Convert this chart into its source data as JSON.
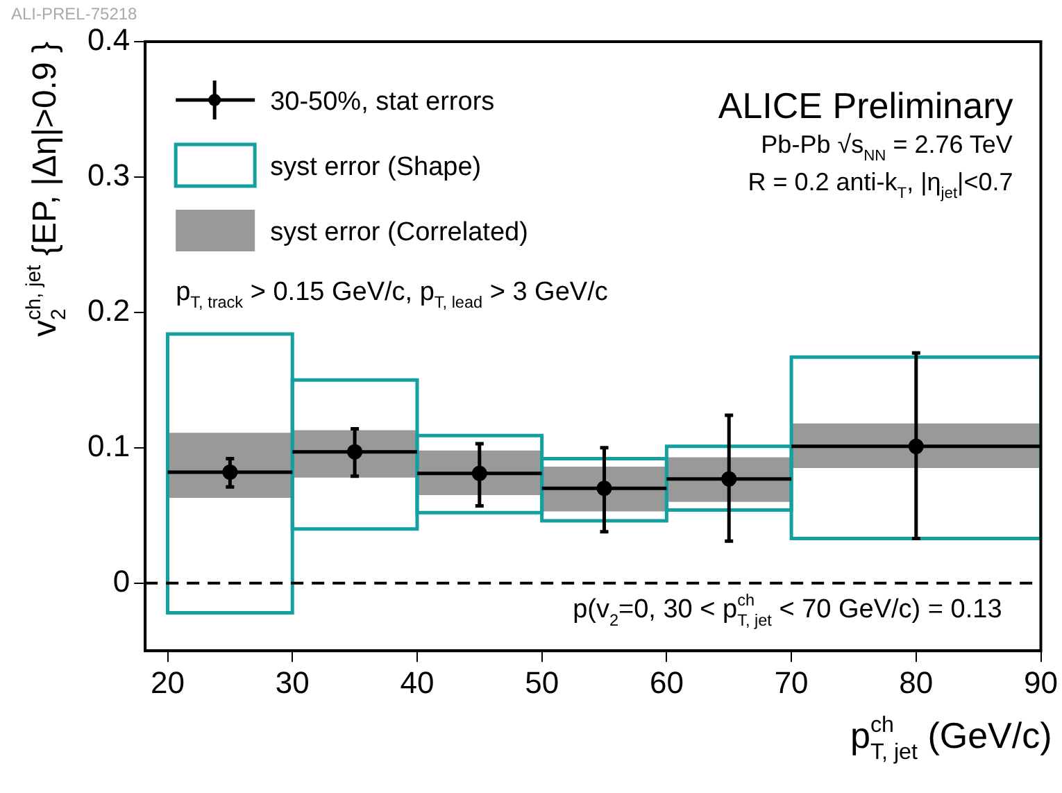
{
  "chart_data": {
    "type": "scatter",
    "xlabel": "p$^{ch}$$_{T, jet}$ (GeV/c)",
    "ylabel": "v$^{ch, jet}$$_{2}$ {EP, |Δη|>0.9 }",
    "xlim": [
      18.2,
      90
    ],
    "xticks": [
      20,
      30,
      40,
      50,
      60,
      70,
      80,
      90
    ],
    "ylim": [
      -0.05,
      0.4
    ],
    "yticks": [
      0,
      0.1,
      0.2,
      0.3,
      0.4
    ],
    "grid": false,
    "legend": "top left",
    "series": [
      {
        "name": "30-50%, stat errors",
        "marker": "circle",
        "color": "#000000",
        "x": [
          25,
          35,
          45,
          55,
          65,
          80
        ],
        "values": [
          0.082,
          0.097,
          0.081,
          0.07,
          0.077,
          0.101
        ],
        "errors": [
          [
            0.071,
            0.092
          ],
          [
            0.079,
            0.114
          ],
          [
            0.057,
            0.103
          ],
          [
            0.038,
            0.1
          ],
          [
            0.031,
            0.124
          ],
          [
            0.033,
            0.17
          ]
        ],
        "xerrors": [
          5,
          5,
          5,
          5,
          5,
          10
        ]
      },
      {
        "name": "syst error (Shape)",
        "type": "bar",
        "line_style": "solid",
        "color": "#14a0a0",
        "x": [
          25,
          35,
          45,
          55,
          65,
          80
        ],
        "base": [
          -0.022,
          0.04,
          0.052,
          0.046,
          0.054,
          0.033
        ],
        "values": [
          0.206,
          0.11,
          0.057,
          0.046,
          0.047,
          0.134
        ]
      },
      {
        "name": "syst error (Correlated)",
        "type": "bar",
        "color": "#999999",
        "x": [
          25,
          35,
          45,
          55,
          65,
          80
        ],
        "base": [
          0.063,
          0.078,
          0.065,
          0.053,
          0.06,
          0.085
        ],
        "values": [
          0.048,
          0.035,
          0.033,
          0.033,
          0.033,
          0.033
        ]
      }
    ],
    "ref_lines": [
      {
        "axis": "y",
        "value": 0,
        "line_style": "dashed",
        "color": "#000000"
      }
    ],
    "annotations": [
      "ALI-PREL-75218",
      "ALICE Preliminary",
      "Pb-Pb √s$_{NN}$ = 2.76 TeV",
      "R = 0.2 anti-k$_{T}$, |η$_{jet}$|<0.7",
      "p$_{T, track}$ > 0.15 GeV/c, p$_{T, lead}$ > 3 GeV/c",
      "p(v$_{2}$=0, 30 < p$^{ch}$$_{T, jet}$ < 70 GeV/c) = 0.13"
    ]
  }
}
